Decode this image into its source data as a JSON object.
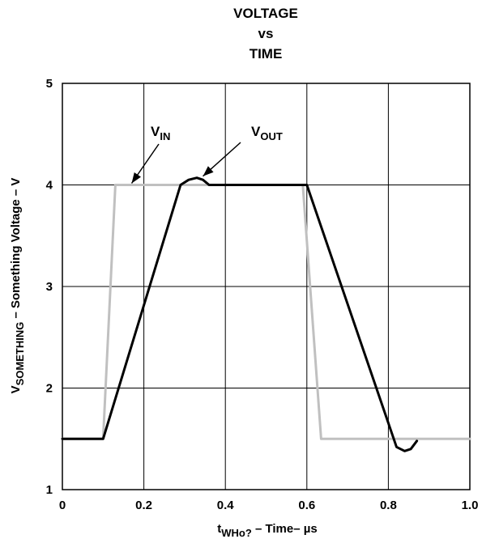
{
  "chart_data": {
    "type": "line",
    "title_lines": [
      "VOLTAGE",
      "vs",
      "TIME"
    ],
    "xlabel": {
      "main": "t",
      "sub": "WHo?",
      "rest": " – Time– µs"
    },
    "ylabel": {
      "main": "V",
      "sub": "SOMETHING",
      "rest": " – Something Voltage – V"
    },
    "xlim": [
      0,
      1.0
    ],
    "ylim": [
      1,
      5
    ],
    "xticks": [
      0,
      0.2,
      0.4,
      0.6,
      0.8,
      1.0
    ],
    "xtick_labels": [
      "0",
      "0.2",
      "0.4",
      "0.6",
      "0.8",
      "1.0"
    ],
    "yticks": [
      1,
      2,
      3,
      4,
      5
    ],
    "ytick_labels": [
      "1",
      "2",
      "3",
      "4",
      "5"
    ],
    "grid": true,
    "series": [
      {
        "name": "VIN",
        "color": "#c0c0c0",
        "x": [
          0.0,
          0.1,
          0.13,
          0.36,
          0.59,
          0.635,
          1.0
        ],
        "y": [
          1.5,
          1.5,
          4.0,
          4.0,
          4.0,
          1.5,
          1.5
        ]
      },
      {
        "name": "VOUT",
        "color": "#000000",
        "x": [
          0.0,
          0.1,
          0.29,
          0.31,
          0.33,
          0.345,
          0.36,
          0.6,
          0.82,
          0.84,
          0.855,
          0.87
        ],
        "y": [
          1.5,
          1.5,
          4.0,
          4.05,
          4.07,
          4.05,
          4.0,
          4.0,
          1.42,
          1.38,
          1.4,
          1.48
        ]
      }
    ],
    "annotations": [
      {
        "main": "V",
        "sub": "IN",
        "tip_x": 0.17,
        "tip_y": 4.0
      },
      {
        "main": "V",
        "sub": "OUT",
        "tip_x": 0.345,
        "tip_y": 4.07
      }
    ]
  }
}
